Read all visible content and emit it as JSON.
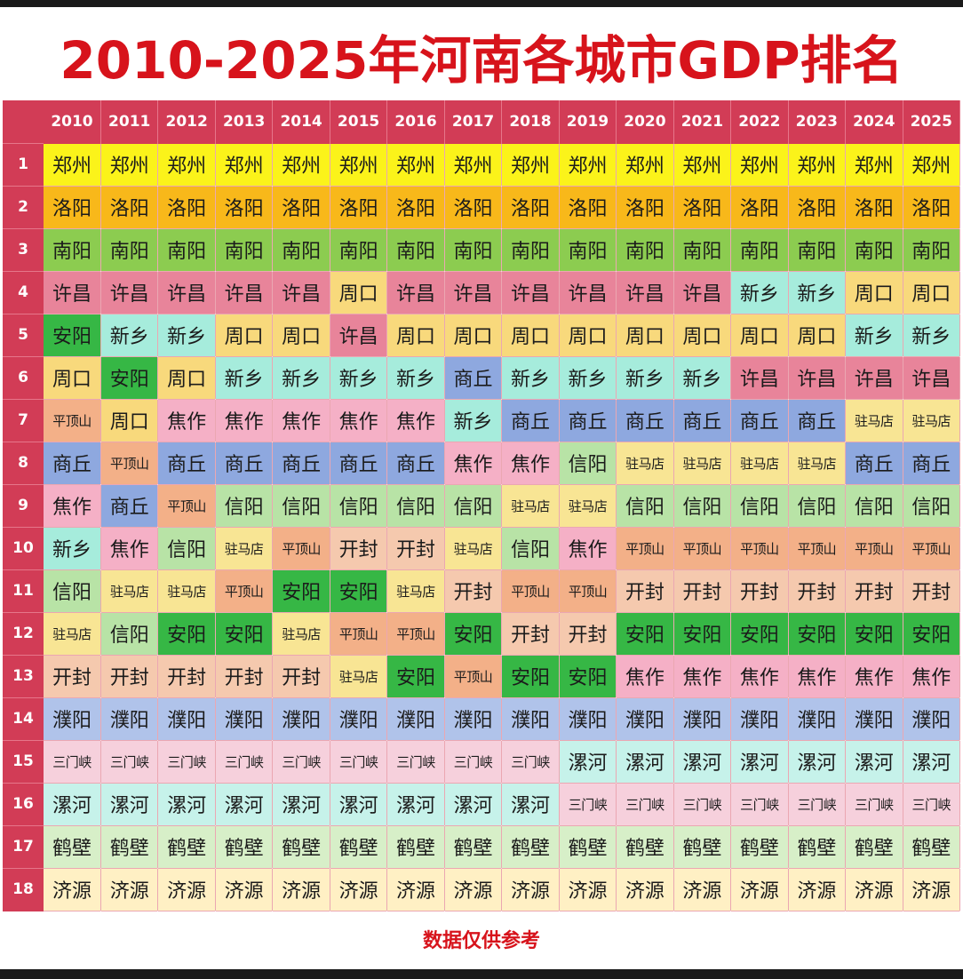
{
  "title": "2010-2025年河南各城市GDP排名",
  "footer": "数据仅供参考",
  "chart_data": {
    "type": "table",
    "title": "2010-2025年河南各城市GDP排名",
    "columns": [
      "2010",
      "2011",
      "2012",
      "2013",
      "2014",
      "2015",
      "2016",
      "2017",
      "2018",
      "2019",
      "2020",
      "2021",
      "2022",
      "2023",
      "2024",
      "2025"
    ],
    "ranks": [
      "1",
      "2",
      "3",
      "4",
      "5",
      "6",
      "7",
      "8",
      "9",
      "10",
      "11",
      "12",
      "13",
      "14",
      "15",
      "16",
      "17",
      "18"
    ],
    "rows": [
      [
        "郑州",
        "郑州",
        "郑州",
        "郑州",
        "郑州",
        "郑州",
        "郑州",
        "郑州",
        "郑州",
        "郑州",
        "郑州",
        "郑州",
        "郑州",
        "郑州",
        "郑州",
        "郑州"
      ],
      [
        "洛阳",
        "洛阳",
        "洛阳",
        "洛阳",
        "洛阳",
        "洛阳",
        "洛阳",
        "洛阳",
        "洛阳",
        "洛阳",
        "洛阳",
        "洛阳",
        "洛阳",
        "洛阳",
        "洛阳",
        "洛阳"
      ],
      [
        "南阳",
        "南阳",
        "南阳",
        "南阳",
        "南阳",
        "南阳",
        "南阳",
        "南阳",
        "南阳",
        "南阳",
        "南阳",
        "南阳",
        "南阳",
        "南阳",
        "南阳",
        "南阳"
      ],
      [
        "许昌",
        "许昌",
        "许昌",
        "许昌",
        "许昌",
        "周口",
        "许昌",
        "许昌",
        "许昌",
        "许昌",
        "许昌",
        "许昌",
        "新乡",
        "新乡",
        "周口",
        "周口"
      ],
      [
        "安阳",
        "新乡",
        "新乡",
        "周口",
        "周口",
        "许昌",
        "周口",
        "周口",
        "周口",
        "周口",
        "周口",
        "周口",
        "周口",
        "周口",
        "新乡",
        "新乡"
      ],
      [
        "周口",
        "安阳",
        "周口",
        "新乡",
        "新乡",
        "新乡",
        "新乡",
        "商丘",
        "新乡",
        "新乡",
        "新乡",
        "新乡",
        "许昌",
        "许昌",
        "许昌",
        "许昌"
      ],
      [
        "平顶山",
        "周口",
        "焦作",
        "焦作",
        "焦作",
        "焦作",
        "焦作",
        "新乡",
        "商丘",
        "商丘",
        "商丘",
        "商丘",
        "商丘",
        "商丘",
        "驻马店",
        "驻马店"
      ],
      [
        "商丘",
        "平顶山",
        "商丘",
        "商丘",
        "商丘",
        "商丘",
        "商丘",
        "焦作",
        "焦作",
        "信阳",
        "驻马店",
        "驻马店",
        "驻马店",
        "驻马店",
        "商丘",
        "商丘"
      ],
      [
        "焦作",
        "商丘",
        "平顶山",
        "信阳",
        "信阳",
        "信阳",
        "信阳",
        "信阳",
        "驻马店",
        "驻马店",
        "信阳",
        "信阳",
        "信阳",
        "信阳",
        "信阳",
        "信阳"
      ],
      [
        "新乡",
        "焦作",
        "信阳",
        "驻马店",
        "平顶山",
        "开封",
        "开封",
        "驻马店",
        "信阳",
        "焦作",
        "平顶山",
        "平顶山",
        "平顶山",
        "平顶山",
        "平顶山",
        "平顶山"
      ],
      [
        "信阳",
        "驻马店",
        "驻马店",
        "平顶山",
        "安阳",
        "安阳",
        "驻马店",
        "开封",
        "平顶山",
        "平顶山",
        "开封",
        "开封",
        "开封",
        "开封",
        "开封",
        "开封"
      ],
      [
        "驻马店",
        "信阳",
        "安阳",
        "安阳",
        "驻马店",
        "平顶山",
        "平顶山",
        "安阳",
        "开封",
        "开封",
        "安阳",
        "安阳",
        "安阳",
        "安阳",
        "安阳",
        "安阳"
      ],
      [
        "开封",
        "开封",
        "开封",
        "开封",
        "开封",
        "驻马店",
        "安阳",
        "平顶山",
        "安阳",
        "安阳",
        "焦作",
        "焦作",
        "焦作",
        "焦作",
        "焦作",
        "焦作"
      ],
      [
        "濮阳",
        "濮阳",
        "濮阳",
        "濮阳",
        "濮阳",
        "濮阳",
        "濮阳",
        "濮阳",
        "濮阳",
        "濮阳",
        "濮阳",
        "濮阳",
        "濮阳",
        "濮阳",
        "濮阳",
        "濮阳"
      ],
      [
        "三门峡",
        "三门峡",
        "三门峡",
        "三门峡",
        "三门峡",
        "三门峡",
        "三门峡",
        "三门峡",
        "三门峡",
        "漯河",
        "漯河",
        "漯河",
        "漯河",
        "漯河",
        "漯河",
        "漯河"
      ],
      [
        "漯河",
        "漯河",
        "漯河",
        "漯河",
        "漯河",
        "漯河",
        "漯河",
        "漯河",
        "漯河",
        "三门峡",
        "三门峡",
        "三门峡",
        "三门峡",
        "三门峡",
        "三门峡",
        "三门峡"
      ],
      [
        "鹤壁",
        "鹤壁",
        "鹤壁",
        "鹤壁",
        "鹤壁",
        "鹤壁",
        "鹤壁",
        "鹤壁",
        "鹤壁",
        "鹤壁",
        "鹤壁",
        "鹤壁",
        "鹤壁",
        "鹤壁",
        "鹤壁",
        "鹤壁"
      ],
      [
        "济源",
        "济源",
        "济源",
        "济源",
        "济源",
        "济源",
        "济源",
        "济源",
        "济源",
        "济源",
        "济源",
        "济源",
        "济源",
        "济源",
        "济源",
        "济源"
      ]
    ],
    "city_colors": {
      "郑州": "#fbf31a",
      "洛阳": "#f8b81a",
      "南阳": "#8ccc50",
      "许昌": "#e8849a",
      "周口": "#f8d97c",
      "安阳": "#36b745",
      "新乡": "#a6ecdc",
      "商丘": "#8ea8df",
      "平顶山": "#f3b088",
      "焦作": "#f5b0c6",
      "信阳": "#b8e3a6",
      "驻马店": "#f8e594",
      "开封": "#f5c9ae",
      "濮阳": "#b0c3ea",
      "三门峡": "#f6d0dc",
      "漯河": "#c6f2ea",
      "鹤壁": "#d7efc8",
      "济源": "#fff0c4"
    }
  }
}
